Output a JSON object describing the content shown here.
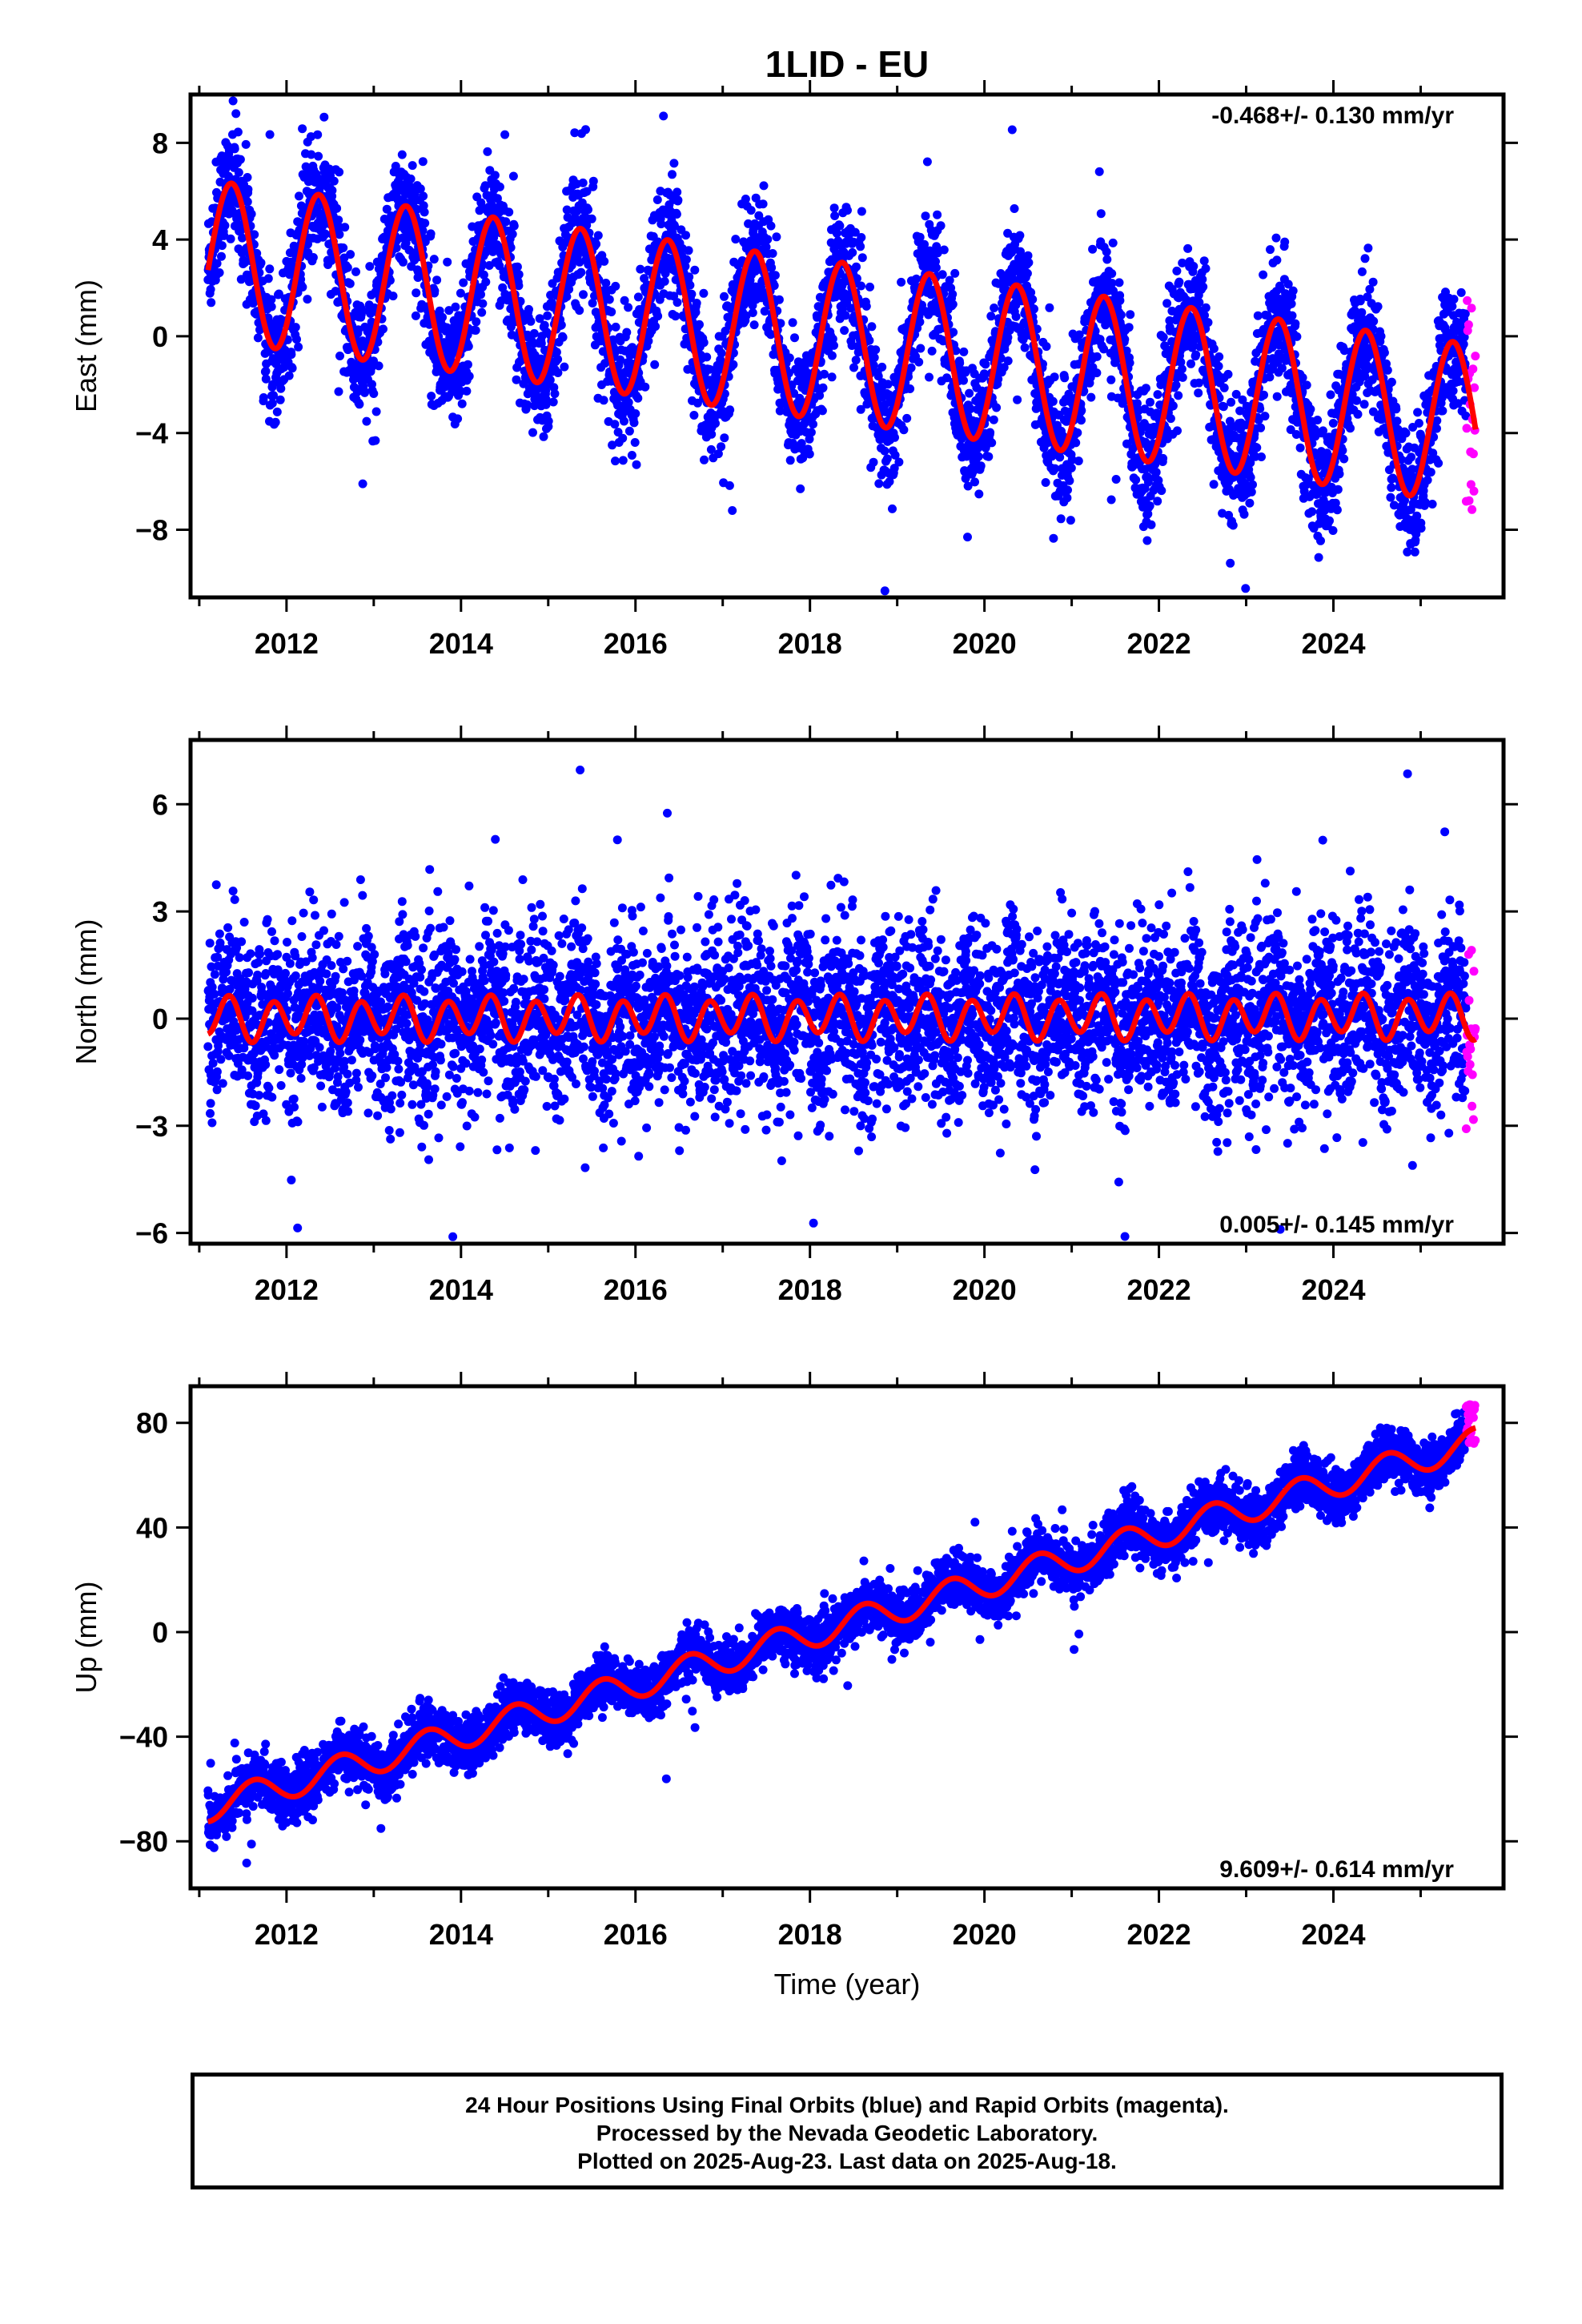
{
  "title": "1LID - EU",
  "xlabel": "Time (year)",
  "caption": [
    "24 Hour Positions Using Final Orbits (blue) and Rapid Orbits (magenta).",
    "Processed by the Nevada Geodetic Laboratory.",
    "Plotted on 2025-Aug-23. Last data on 2025-Aug-18."
  ],
  "colors": {
    "final": "#0000ff",
    "rapid": "#ff00ff",
    "model": "#ff0000",
    "axes": "#000000"
  },
  "chart_data": [
    {
      "type": "scatter",
      "ylabel": "East (mm)",
      "rate_label": "-0.468+/- 0.130 mm/yr",
      "rate_position": "top-right",
      "xlim": [
        2010.9,
        2025.95
      ],
      "ylim": [
        -10.8,
        10.0
      ],
      "yticks": [
        8,
        4,
        0,
        -4,
        -8
      ],
      "ytick_labels": [
        "8",
        "4",
        "0",
        "−4",
        "−8"
      ],
      "xticks": [
        2012,
        2014,
        2016,
        2018,
        2020,
        2022,
        2024
      ],
      "xtick_labels": [
        "2012",
        "2014",
        "2016",
        "2018",
        "2020",
        "2022",
        "2024"
      ],
      "data_start": 2011.1,
      "final_end": 2025.52,
      "rapid_end": 2025.63,
      "model": {
        "intercept_at_2011": 3.2,
        "rate_mm_per_yr": -0.468,
        "annual_amplitude": 3.3,
        "annual_peak": 0.37,
        "semiannual_amplitude": 0.0,
        "semiannual_peak": 0.0
      },
      "scatter_sd": 1.3,
      "rapid_y_range": [
        -7.2,
        1.8
      ]
    },
    {
      "type": "scatter",
      "ylabel": "North (mm)",
      "rate_label": "0.005+/- 0.145 mm/yr",
      "rate_position": "bottom-right",
      "xlim": [
        2010.9,
        2025.95
      ],
      "ylim": [
        -6.3,
        7.8
      ],
      "yticks": [
        6,
        3,
        0,
        -3,
        -6
      ],
      "ytick_labels": [
        "6",
        "3",
        "0",
        "−3",
        "−6"
      ],
      "xticks": [
        2012,
        2014,
        2016,
        2018,
        2020,
        2022,
        2024
      ],
      "xtick_labels": [
        "2012",
        "2014",
        "2016",
        "2018",
        "2020",
        "2022",
        "2024"
      ],
      "data_start": 2011.1,
      "final_end": 2025.52,
      "rapid_end": 2025.63,
      "model": {
        "intercept_at_2011": 0.0,
        "rate_mm_per_yr": 0.005,
        "annual_amplitude": 0.15,
        "annual_peak": 0.2,
        "semiannual_amplitude": 0.55,
        "semiannual_peak": 0.35
      },
      "scatter_sd": 1.25,
      "rapid_y_range": [
        -3.1,
        2.2
      ]
    },
    {
      "type": "scatter",
      "ylabel": "Up (mm)",
      "rate_label": "9.609+/- 0.614 mm/yr",
      "rate_position": "bottom-right",
      "xlim": [
        2010.9,
        2025.95
      ],
      "ylim": [
        -98,
        94
      ],
      "yticks": [
        80,
        40,
        0,
        -40,
        -80
      ],
      "ytick_labels": [
        "80",
        "40",
        "0",
        "−40",
        "−80"
      ],
      "xticks": [
        2012,
        2014,
        2016,
        2018,
        2020,
        2022,
        2024
      ],
      "xtick_labels": [
        "2012",
        "2014",
        "2016",
        "2018",
        "2020",
        "2022",
        "2024"
      ],
      "data_start": 2011.1,
      "final_end": 2025.52,
      "rapid_end": 2025.63,
      "model": {
        "intercept_at_2011": -68,
        "rate_mm_per_yr": 9.609,
        "annual_amplitude": 5.5,
        "annual_peak": 0.62,
        "semiannual_amplitude": 0.0,
        "semiannual_peak": 0.0
      },
      "scatter_sd": 5.0,
      "rapid_y_range": [
        72,
        88
      ]
    }
  ]
}
